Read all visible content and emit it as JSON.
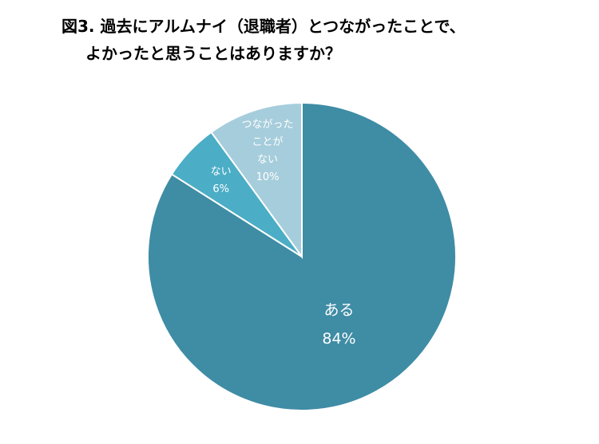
{
  "chart_data": {
    "type": "pie",
    "title_lines": [
      "図3. 過去にアルムナイ（退職者）とつながったことで、",
      "よかったと思うことはありますか？"
    ],
    "categories": [
      "ある",
      "ない",
      "つながった\nことが\nない"
    ],
    "values": [
      84,
      6,
      10
    ],
    "value_labels": [
      "84%",
      "6%",
      "10%"
    ],
    "colors": [
      "#3f8ca5",
      "#4badc6",
      "#a6cddb"
    ]
  }
}
